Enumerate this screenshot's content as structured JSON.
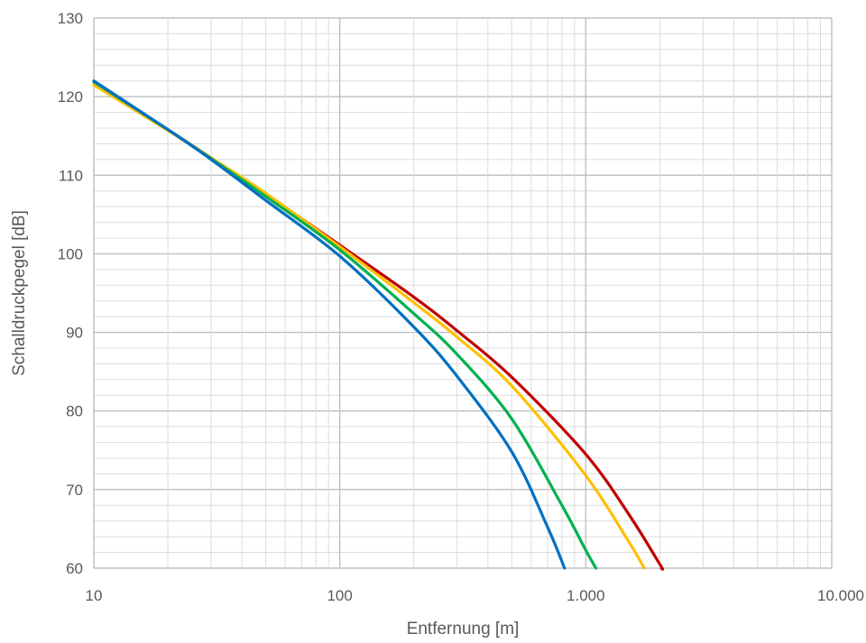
{
  "chart_data": {
    "type": "line",
    "title": "",
    "xlabel": "Entfernung [m]",
    "ylabel": "Schalldruckpegel [dB]",
    "x_scale": "log",
    "xlim": [
      10,
      10000
    ],
    "ylim": [
      60,
      130
    ],
    "grid": true,
    "legend": "none",
    "x_tick_values": [
      10,
      100,
      1000,
      10000
    ],
    "x_tick_labels": [
      "10",
      "100",
      "1.000",
      "10.000"
    ],
    "y_tick_values": [
      60,
      70,
      80,
      90,
      100,
      110,
      120,
      130
    ],
    "y_tick_labels": [
      "60",
      "70",
      "80",
      "90",
      "100",
      "110",
      "120",
      "130"
    ],
    "series": [
      {
        "color": "#C00000",
        "x": [
          10,
          20,
          30,
          50,
          100,
          200,
          300,
          500,
          1000,
          1500,
          2000,
          2030
        ],
        "y": [
          121.9,
          115.8,
          112.2,
          107.6,
          101.1,
          94.5,
          90.2,
          84.3,
          74.5,
          66.8,
          60.5,
          60.0
        ]
      },
      {
        "color": "#FFC000",
        "x": [
          10,
          20,
          30,
          50,
          100,
          200,
          300,
          500,
          1000,
          1500,
          1730
        ],
        "y": [
          121.5,
          115.7,
          112.2,
          107.7,
          100.9,
          93.8,
          89.4,
          83.2,
          71.8,
          63.3,
          60.0
        ]
      },
      {
        "color": "#00B050",
        "x": [
          10,
          20,
          30,
          50,
          100,
          200,
          300,
          500,
          800,
          1000,
          1100
        ],
        "y": [
          121.9,
          115.8,
          112.1,
          107.3,
          100.5,
          92.4,
          87.2,
          79.0,
          68.0,
          62.3,
          60.0
        ]
      },
      {
        "color": "#0070C0",
        "x": [
          10,
          20,
          30,
          50,
          100,
          200,
          300,
          500,
          700,
          820
        ],
        "y": [
          122.0,
          115.8,
          112.0,
          106.8,
          99.7,
          90.7,
          84.4,
          74.8,
          65.2,
          60.0
        ]
      }
    ]
  }
}
